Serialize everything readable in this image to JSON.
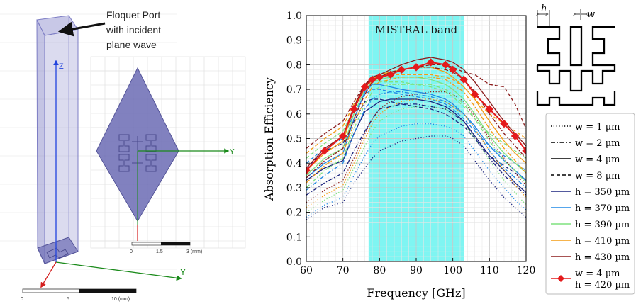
{
  "left_panel": {
    "callout_text": [
      "Floquet Port",
      "with incident",
      "plane wave"
    ],
    "axis_z": "Z",
    "axis_y": "Y",
    "inset_axis_y": "Y",
    "scale_main": {
      "labels": [
        "0",
        "5",
        "10 (mm)"
      ]
    },
    "scale_inset": {
      "labels": [
        "0",
        "1.5",
        "3 (mm)"
      ]
    },
    "colors": {
      "prism": "#7c7cc4",
      "diamond": "#6b6bb4",
      "axis_green": "#1a8a1a",
      "axis_blue": "#2244dd",
      "axis_red": "#d42020"
    }
  },
  "chart_data": {
    "type": "line",
    "title": "",
    "xlabel": "Frequency [GHz]",
    "ylabel": "Absorption Efficiency",
    "xlim": [
      60,
      120
    ],
    "ylim": [
      0.0,
      1.0
    ],
    "xticks": [
      60,
      70,
      80,
      90,
      100,
      110,
      120
    ],
    "yticks": [
      0.0,
      0.1,
      0.2,
      0.3,
      0.4,
      0.5,
      0.6,
      0.7,
      0.8,
      0.9,
      1.0
    ],
    "grid": true,
    "band": {
      "label": "MISTRAL band",
      "x0": 77,
      "x1": 103,
      "color": "#7ff5f2"
    },
    "x": [
      60,
      65,
      70,
      73,
      76,
      78,
      80,
      83,
      86,
      90,
      94,
      98,
      100,
      103,
      106,
      110,
      114,
      117,
      120
    ],
    "series": [
      {
        "color": "#1a237e",
        "dash": "dot",
        "values": [
          0.17,
          0.22,
          0.24,
          0.32,
          0.38,
          0.42,
          0.45,
          0.47,
          0.49,
          0.5,
          0.51,
          0.51,
          0.5,
          0.47,
          0.41,
          0.33,
          0.26,
          0.22,
          0.18
        ]
      },
      {
        "color": "#1a237e",
        "dash": "dashdot",
        "values": [
          0.27,
          0.32,
          0.36,
          0.45,
          0.53,
          0.58,
          0.62,
          0.63,
          0.64,
          0.64,
          0.63,
          0.62,
          0.6,
          0.57,
          0.5,
          0.42,
          0.35,
          0.31,
          0.27
        ]
      },
      {
        "color": "#1a237e",
        "dash": "solid",
        "values": [
          0.33,
          0.38,
          0.41,
          0.52,
          0.61,
          0.63,
          0.65,
          0.66,
          0.66,
          0.66,
          0.65,
          0.63,
          0.61,
          0.57,
          0.51,
          0.43,
          0.37,
          0.32,
          0.28
        ]
      },
      {
        "color": "#1a237e",
        "dash": "dash",
        "values": [
          0.38,
          0.45,
          0.48,
          0.57,
          0.65,
          0.66,
          0.66,
          0.65,
          0.64,
          0.63,
          0.62,
          0.6,
          0.58,
          0.55,
          0.5,
          0.43,
          0.39,
          0.36,
          0.33
        ]
      },
      {
        "color": "#1e88e5",
        "dash": "dot",
        "values": [
          0.18,
          0.23,
          0.26,
          0.35,
          0.43,
          0.48,
          0.51,
          0.53,
          0.55,
          0.56,
          0.56,
          0.55,
          0.54,
          0.51,
          0.45,
          0.37,
          0.3,
          0.25,
          0.21
        ]
      },
      {
        "color": "#1e88e5",
        "dash": "dashdot",
        "values": [
          0.29,
          0.35,
          0.4,
          0.52,
          0.62,
          0.66,
          0.68,
          0.69,
          0.69,
          0.68,
          0.67,
          0.65,
          0.63,
          0.6,
          0.54,
          0.45,
          0.38,
          0.34,
          0.3
        ]
      },
      {
        "color": "#1e88e5",
        "dash": "solid",
        "values": [
          0.34,
          0.4,
          0.44,
          0.58,
          0.69,
          0.72,
          0.72,
          0.71,
          0.7,
          0.69,
          0.68,
          0.66,
          0.64,
          0.6,
          0.55,
          0.47,
          0.41,
          0.37,
          0.33
        ]
      },
      {
        "color": "#1e88e5",
        "dash": "dash",
        "values": [
          0.4,
          0.46,
          0.5,
          0.6,
          0.68,
          0.7,
          0.7,
          0.69,
          0.68,
          0.67,
          0.66,
          0.64,
          0.62,
          0.58,
          0.53,
          0.47,
          0.43,
          0.4,
          0.37
        ]
      },
      {
        "color": "#7ee27e",
        "dash": "dot",
        "values": [
          0.2,
          0.25,
          0.29,
          0.38,
          0.47,
          0.53,
          0.57,
          0.6,
          0.62,
          0.63,
          0.63,
          0.62,
          0.6,
          0.56,
          0.5,
          0.41,
          0.33,
          0.28,
          0.23
        ]
      },
      {
        "color": "#7ee27e",
        "dash": "dashdot",
        "values": [
          0.3,
          0.37,
          0.42,
          0.54,
          0.64,
          0.69,
          0.71,
          0.72,
          0.72,
          0.72,
          0.72,
          0.7,
          0.68,
          0.64,
          0.58,
          0.49,
          0.41,
          0.37,
          0.32
        ]
      },
      {
        "color": "#7ee27e",
        "dash": "solid",
        "values": [
          0.35,
          0.42,
          0.46,
          0.6,
          0.7,
          0.73,
          0.74,
          0.75,
          0.75,
          0.75,
          0.74,
          0.72,
          0.7,
          0.66,
          0.6,
          0.51,
          0.44,
          0.4,
          0.36
        ]
      },
      {
        "color": "#7ee27e",
        "dash": "dash",
        "values": [
          0.42,
          0.48,
          0.53,
          0.62,
          0.7,
          0.72,
          0.73,
          0.73,
          0.73,
          0.72,
          0.71,
          0.69,
          0.67,
          0.63,
          0.58,
          0.52,
          0.48,
          0.45,
          0.42
        ]
      },
      {
        "color": "#f39c12",
        "dash": "dot",
        "values": [
          0.22,
          0.27,
          0.31,
          0.4,
          0.5,
          0.56,
          0.6,
          0.63,
          0.65,
          0.66,
          0.66,
          0.65,
          0.63,
          0.6,
          0.54,
          0.45,
          0.37,
          0.31,
          0.26
        ]
      },
      {
        "color": "#f39c12",
        "dash": "dashdot",
        "values": [
          0.32,
          0.39,
          0.44,
          0.56,
          0.66,
          0.71,
          0.73,
          0.74,
          0.75,
          0.75,
          0.75,
          0.74,
          0.72,
          0.69,
          0.63,
          0.54,
          0.46,
          0.41,
          0.36
        ]
      },
      {
        "color": "#f39c12",
        "dash": "solid",
        "values": [
          0.37,
          0.44,
          0.49,
          0.62,
          0.71,
          0.74,
          0.76,
          0.77,
          0.78,
          0.79,
          0.79,
          0.77,
          0.75,
          0.71,
          0.66,
          0.57,
          0.49,
          0.44,
          0.4
        ]
      },
      {
        "color": "#f39c12",
        "dash": "dash",
        "values": [
          0.44,
          0.5,
          0.55,
          0.64,
          0.71,
          0.73,
          0.75,
          0.76,
          0.76,
          0.76,
          0.76,
          0.75,
          0.74,
          0.71,
          0.66,
          0.6,
          0.56,
          0.53,
          0.5
        ]
      },
      {
        "color": "#8b1a1a",
        "dash": "dot",
        "values": [
          0.24,
          0.29,
          0.33,
          0.42,
          0.52,
          0.58,
          0.62,
          0.65,
          0.67,
          0.68,
          0.69,
          0.69,
          0.68,
          0.65,
          0.59,
          0.5,
          0.42,
          0.36,
          0.31
        ]
      },
      {
        "color": "#8b1a1a",
        "dash": "dashdot",
        "values": [
          0.34,
          0.41,
          0.46,
          0.58,
          0.68,
          0.73,
          0.75,
          0.77,
          0.78,
          0.79,
          0.79,
          0.78,
          0.77,
          0.74,
          0.69,
          0.6,
          0.52,
          0.47,
          0.42
        ]
      },
      {
        "color": "#8b1a1a",
        "dash": "solid",
        "values": [
          0.38,
          0.46,
          0.51,
          0.63,
          0.72,
          0.75,
          0.76,
          0.78,
          0.8,
          0.82,
          0.83,
          0.82,
          0.81,
          0.78,
          0.73,
          0.65,
          0.57,
          0.52,
          0.47
        ]
      },
      {
        "color": "#8b1a1a",
        "dash": "dash",
        "values": [
          0.46,
          0.52,
          0.57,
          0.65,
          0.72,
          0.74,
          0.75,
          0.77,
          0.78,
          0.79,
          0.8,
          0.8,
          0.79,
          0.77,
          0.76,
          0.72,
          0.71,
          0.64,
          0.54
        ]
      },
      {
        "color": "#e41a1c",
        "dash": "solid",
        "marker": "diamond",
        "values": [
          0.37,
          0.45,
          0.51,
          0.62,
          0.71,
          0.74,
          0.75,
          0.76,
          0.78,
          0.79,
          0.81,
          0.8,
          0.78,
          0.74,
          0.68,
          0.62,
          0.56,
          0.51,
          0.45
        ]
      }
    ],
    "legend": {
      "placement": "right",
      "entries": [
        {
          "dash": "dot",
          "color": "#000000",
          "label": "w = 1 µm"
        },
        {
          "dash": "dashdot",
          "color": "#000000",
          "label": "w = 2 µm"
        },
        {
          "dash": "solid",
          "color": "#000000",
          "label": "w = 4 µm"
        },
        {
          "dash": "dash",
          "color": "#000000",
          "label": "w = 8 µm"
        },
        {
          "dash": "solid",
          "color": "#1a237e",
          "label": "h = 350 µm"
        },
        {
          "dash": "solid",
          "color": "#1e88e5",
          "label": "h = 370 µm"
        },
        {
          "dash": "solid",
          "color": "#7ee27e",
          "label": "h = 390 µm"
        },
        {
          "dash": "solid",
          "color": "#f39c12",
          "label": "h = 410 µm"
        },
        {
          "dash": "solid",
          "color": "#8b1a1a",
          "label": "h = 430 µm"
        },
        {
          "dash": "solid",
          "color": "#e41a1c",
          "marker": "diamond",
          "label": "w = 4 µm",
          "label2": "h = 420 µm"
        }
      ]
    }
  },
  "geometry_inset": {
    "h_label": "h",
    "w_label": "w"
  }
}
